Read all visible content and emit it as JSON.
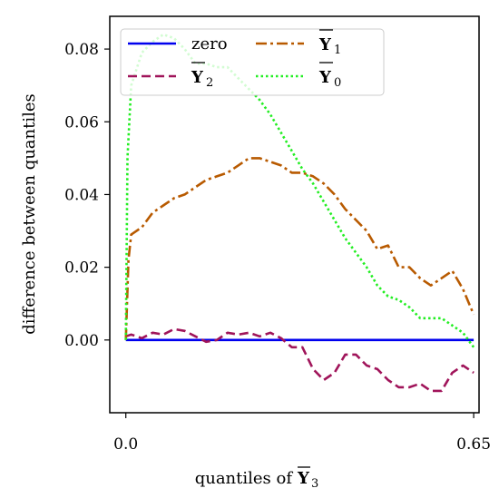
{
  "chart_data": {
    "type": "line",
    "title": "",
    "xlabel": "quantiles of",
    "xlabel_symbol": "Y",
    "xlabel_subscript": "3",
    "ylabel": "difference between quantiles",
    "xlim": [
      -0.03,
      0.66
    ],
    "ylim": [
      -0.02,
      0.089
    ],
    "xticks": [
      0.0,
      0.65
    ],
    "xtick_labels": [
      "0.0",
      "0.65"
    ],
    "yticks": [
      0.0,
      0.02,
      0.04,
      0.06,
      0.08
    ],
    "ytick_labels": [
      "0.00",
      "0.02",
      "0.04",
      "0.06",
      "0.08"
    ],
    "legend_position": "top",
    "grid": false,
    "series": [
      {
        "name": "zero",
        "legend_symbol": "",
        "legend_subscript": "",
        "color": "#0000ee",
        "style": "solid",
        "x": [
          0.0,
          0.65
        ],
        "y": [
          0.0,
          0.0
        ]
      },
      {
        "name": "",
        "legend_symbol": "Y",
        "legend_subscript": "2",
        "color": "#a0145a",
        "style": "dashed",
        "x": [
          0.0,
          0.01,
          0.03,
          0.05,
          0.07,
          0.09,
          0.11,
          0.13,
          0.15,
          0.17,
          0.19,
          0.21,
          0.23,
          0.25,
          0.27,
          0.29,
          0.31,
          0.33,
          0.35,
          0.37,
          0.39,
          0.41,
          0.43,
          0.45,
          0.47,
          0.49,
          0.51,
          0.53,
          0.55,
          0.57,
          0.59,
          0.61,
          0.63,
          0.65
        ],
        "y": [
          0.001,
          0.0015,
          0.0005,
          0.002,
          0.0015,
          0.003,
          0.0025,
          0.001,
          -0.0005,
          0.0,
          0.002,
          0.0015,
          0.002,
          0.001,
          0.002,
          0.0005,
          -0.002,
          -0.002,
          -0.008,
          -0.011,
          -0.009,
          -0.004,
          -0.004,
          -0.007,
          -0.008,
          -0.011,
          -0.013,
          -0.013,
          -0.012,
          -0.014,
          -0.014,
          -0.009,
          -0.007,
          -0.009
        ]
      },
      {
        "name": "",
        "legend_symbol": "Y",
        "legend_subscript": "1",
        "color": "#b85a00",
        "style": "dashdot",
        "x": [
          0.0,
          0.005,
          0.01,
          0.03,
          0.05,
          0.07,
          0.09,
          0.11,
          0.13,
          0.15,
          0.17,
          0.19,
          0.21,
          0.23,
          0.25,
          0.27,
          0.29,
          0.31,
          0.33,
          0.35,
          0.37,
          0.39,
          0.41,
          0.43,
          0.45,
          0.47,
          0.49,
          0.51,
          0.53,
          0.55,
          0.57,
          0.59,
          0.61,
          0.63,
          0.65
        ],
        "y": [
          0.0,
          0.022,
          0.029,
          0.031,
          0.035,
          0.037,
          0.039,
          0.04,
          0.042,
          0.044,
          0.045,
          0.046,
          0.048,
          0.05,
          0.05,
          0.049,
          0.048,
          0.046,
          0.046,
          0.045,
          0.043,
          0.04,
          0.036,
          0.033,
          0.03,
          0.025,
          0.026,
          0.02,
          0.02,
          0.017,
          0.015,
          0.017,
          0.019,
          0.014,
          0.007
        ]
      },
      {
        "name": "",
        "legend_symbol": "Y",
        "legend_subscript": "0",
        "color": "#22ee22",
        "style": "dotted",
        "x": [
          0.0,
          0.003,
          0.01,
          0.03,
          0.05,
          0.07,
          0.09,
          0.11,
          0.13,
          0.15,
          0.17,
          0.19,
          0.21,
          0.23,
          0.25,
          0.27,
          0.29,
          0.31,
          0.33,
          0.35,
          0.37,
          0.39,
          0.41,
          0.43,
          0.45,
          0.47,
          0.49,
          0.51,
          0.53,
          0.55,
          0.57,
          0.59,
          0.61,
          0.63,
          0.65
        ],
        "y": [
          0.0,
          0.05,
          0.07,
          0.079,
          0.082,
          0.084,
          0.083,
          0.08,
          0.076,
          0.076,
          0.075,
          0.075,
          0.072,
          0.069,
          0.066,
          0.062,
          0.057,
          0.052,
          0.047,
          0.043,
          0.038,
          0.033,
          0.028,
          0.024,
          0.02,
          0.015,
          0.012,
          0.011,
          0.009,
          0.006,
          0.006,
          0.006,
          0.004,
          0.002,
          -0.002
        ]
      }
    ]
  }
}
